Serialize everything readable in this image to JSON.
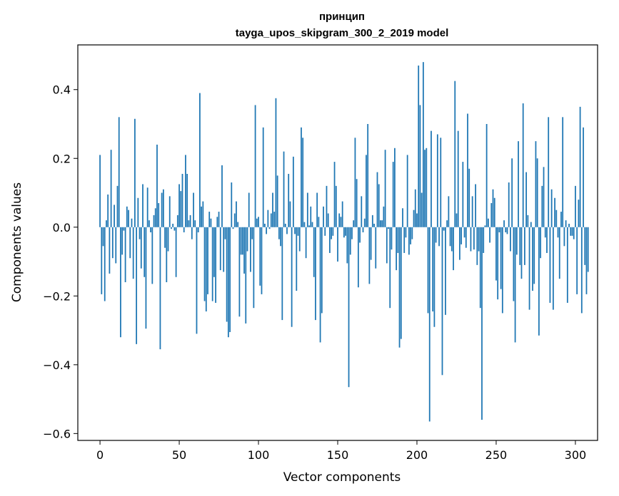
{
  "chart_data": {
    "type": "bar",
    "title": "принцип",
    "subtitle": "tayga_upos_skipgram_300_2_2019 model",
    "xlabel": "Vector components",
    "ylabel": "Components values",
    "xlim": [
      -14,
      314
    ],
    "ylim": [
      -0.62,
      0.53
    ],
    "xticks": [
      0,
      50,
      100,
      150,
      200,
      250,
      300
    ],
    "yticks": [
      -0.6,
      -0.4,
      -0.2,
      0.0,
      0.2,
      0.4
    ],
    "ytick_labels": [
      "−0.6",
      "−0.4",
      "−0.2",
      "0.0",
      "0.2",
      "0.4"
    ],
    "grid": false,
    "bar_color": "#1f77b4",
    "values": [
      0.21,
      -0.195,
      -0.055,
      -0.215,
      0.02,
      0.095,
      -0.135,
      0.225,
      -0.09,
      0.065,
      -0.105,
      0.12,
      0.32,
      -0.32,
      -0.08,
      -0.01,
      -0.16,
      0.06,
      0.05,
      -0.09,
      0.025,
      -0.15,
      0.315,
      -0.34,
      0.085,
      -0.035,
      -0.12,
      0.125,
      -0.145,
      -0.295,
      0.115,
      0.02,
      -0.015,
      -0.165,
      0.035,
      0.055,
      0.24,
      0.07,
      -0.355,
      0.1,
      0.11,
      -0.06,
      -0.16,
      -0.07,
      0.09,
      -0.005,
      0.01,
      -0.01,
      -0.145,
      0.035,
      0.125,
      0.105,
      0.155,
      -0.015,
      0.21,
      0.155,
      0.02,
      0.035,
      -0.035,
      0.1,
      0.02,
      -0.31,
      -0.015,
      0.39,
      0.06,
      0.075,
      -0.215,
      -0.245,
      -0.195,
      0.045,
      0.025,
      -0.215,
      -0.145,
      -0.22,
      0.03,
      0.045,
      -0.125,
      0.18,
      -0.13,
      -0.035,
      -0.275,
      -0.32,
      -0.305,
      0.13,
      -0.005,
      0.04,
      0.075,
      0.015,
      -0.26,
      -0.08,
      -0.08,
      -0.135,
      -0.28,
      -0.07,
      0.1,
      -0.13,
      -0.035,
      -0.235,
      0.355,
      0.025,
      0.03,
      -0.17,
      -0.195,
      0.29,
      0.01,
      -0.02,
      0.05,
      -0.005,
      0.04,
      0.1,
      0.045,
      0.375,
      0.15,
      -0.035,
      -0.055,
      -0.27,
      0.22,
      0.01,
      -0.02,
      0.155,
      0.075,
      -0.29,
      0.205,
      -0.02,
      -0.185,
      -0.025,
      -0.07,
      0.29,
      0.26,
      0.015,
      -0.09,
      0.1,
      0.005,
      0.06,
      0.015,
      -0.145,
      -0.27,
      0.1,
      0.03,
      -0.335,
      -0.25,
      0.06,
      -0.025,
      0.12,
      0.04,
      -0.075,
      -0.035,
      -0.025,
      0.19,
      0.12,
      -0.1,
      0.04,
      0.03,
      0.075,
      -0.03,
      -0.025,
      -0.105,
      -0.465,
      -0.08,
      -0.035,
      0.02,
      0.26,
      0.14,
      -0.175,
      -0.045,
      0.09,
      -0.015,
      0.025,
      0.21,
      0.3,
      -0.165,
      -0.095,
      0.035,
      0.01,
      -0.12,
      0.16,
      0.125,
      0.02,
      0.02,
      0.06,
      0.225,
      -0.105,
      -0.005,
      -0.235,
      -0.065,
      0.19,
      0.23,
      -0.125,
      -0.075,
      -0.35,
      -0.325,
      0.055,
      -0.075,
      -0.03,
      0.21,
      -0.08,
      -0.05,
      -0.035,
      0.05,
      0.11,
      0.04,
      0.47,
      0.355,
      0.1,
      0.48,
      0.225,
      0.23,
      -0.25,
      -0.565,
      0.28,
      -0.245,
      -0.29,
      -0.045,
      0.27,
      -0.055,
      0.26,
      -0.43,
      -0.01,
      -0.255,
      0.02,
      0.09,
      -0.055,
      -0.07,
      -0.125,
      0.425,
      0.04,
      0.28,
      -0.095,
      -0.05,
      0.19,
      -0.03,
      -0.06,
      0.33,
      0.17,
      -0.07,
      0.09,
      -0.065,
      0.125,
      -0.11,
      -0.07,
      -0.235,
      -0.56,
      -0.075,
      0.005,
      0.3,
      0.025,
      -0.045,
      0.07,
      0.11,
      0.085,
      -0.155,
      -0.21,
      -0.015,
      -0.18,
      -0.25,
      0.02,
      -0.015,
      -0.02,
      0.13,
      -0.07,
      0.2,
      -0.215,
      -0.335,
      -0.08,
      0.25,
      -0.11,
      -0.15,
      0.36,
      -0.11,
      0.16,
      0.035,
      -0.24,
      0.015,
      -0.185,
      -0.165,
      0.25,
      0.2,
      -0.315,
      -0.09,
      0.12,
      0.175,
      -0.03,
      -0.075,
      0.32,
      -0.22,
      0.11,
      -0.24,
      0.085,
      0.05,
      -0.03,
      -0.15,
      0.045,
      0.32,
      -0.055,
      0.02,
      -0.22,
      0.01,
      -0.025,
      -0.025,
      -0.035,
      0.12,
      -0.195,
      0.08,
      0.35,
      -0.25,
      0.29,
      -0.11,
      -0.195,
      -0.13
    ]
  }
}
